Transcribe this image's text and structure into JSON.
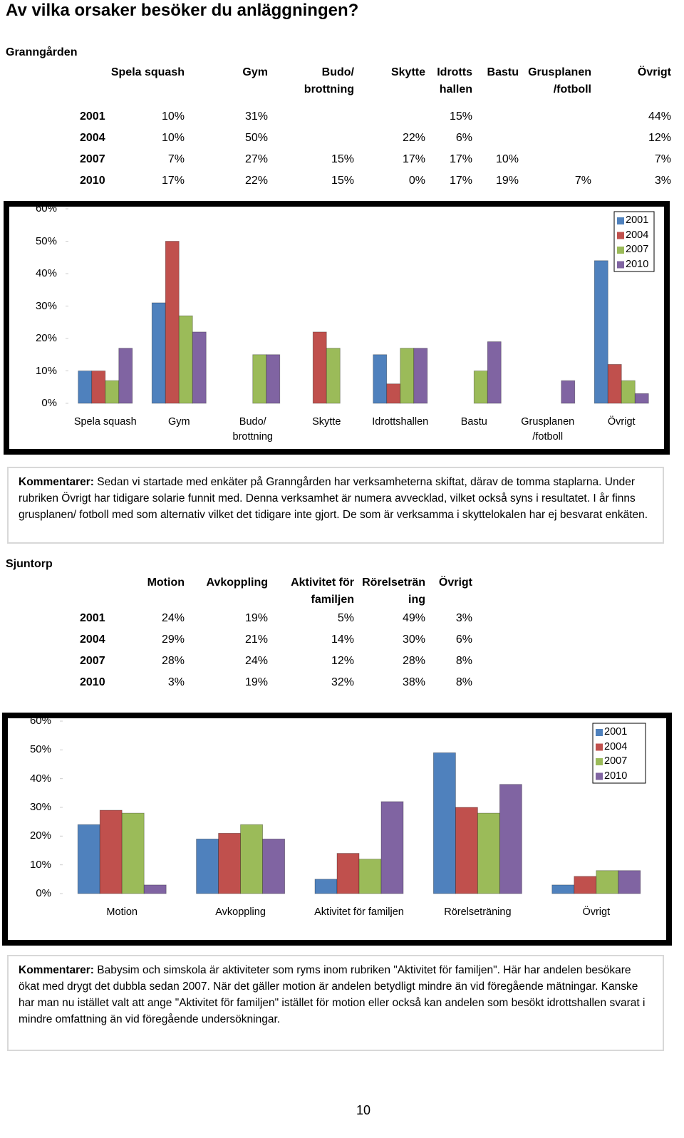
{
  "title": "Av vilka orsaker besöker du anläggningen?",
  "sections": [
    {
      "name": "Granngården",
      "table": {
        "header": [
          "Spela squash",
          "Gym",
          "Budo/\nbrottning",
          "Skytte",
          "Idrotts\nhallen",
          "Bastu",
          "Grusplanen\n/fotboll",
          "Övrigt"
        ],
        "rows": [
          [
            "2001",
            "10%",
            "31%",
            null,
            null,
            "15%",
            null,
            null,
            "44%"
          ],
          [
            "2004",
            "10%",
            "50%",
            null,
            "22%",
            "6%",
            null,
            null,
            "12%"
          ],
          [
            "2007",
            "7%",
            "27%",
            "15%",
            "17%",
            "17%",
            "10%",
            null,
            "7%"
          ],
          [
            "2010",
            "17%",
            "22%",
            "15%",
            "0%",
            "17%",
            "19%",
            "7%",
            "3%"
          ]
        ]
      },
      "comment_label": "Kommentarer:",
      "comment": "Sedan vi startade med enkäter på Granngården har verksamheterna skiftat, därav de tomma staplarna. Under rubriken Övrigt har tidigare solarie funnit med. Denna verksamhet är numera avvecklad, vilket också syns i resultatet. I år finns grusplanen/ fotboll med som alternativ vilket det tidigare inte gjort. De som är verksamma i skyttelokalen har ej besvarat enkäten."
    },
    {
      "name": "Sjuntorp",
      "table": {
        "header": [
          "Motion",
          "Avkoppling",
          "Aktivitet för\nfamiljen",
          "Rörelseträn\ning",
          "Övrigt"
        ],
        "rows": [
          [
            "2001",
            "24%",
            "19%",
            "5%",
            "49%",
            "3%"
          ],
          [
            "2004",
            "29%",
            "21%",
            "14%",
            "30%",
            "6%"
          ],
          [
            "2007",
            "28%",
            "24%",
            "12%",
            "28%",
            "8%"
          ],
          [
            "2010",
            "3%",
            "19%",
            "32%",
            "38%",
            "8%"
          ]
        ]
      },
      "comment_label": "Kommentarer:",
      "comment": "Babysim och simskola är aktiviteter som ryms inom rubriken \"Aktivitet för familjen\". Här har andelen besökare ökat med drygt det dubbla sedan 2007. När det gäller motion är andelen betydligt mindre än vid föregående mätningar. Kanske har man nu istället valt att ange \"Aktivitet för familjen\" istället för motion eller också kan andelen som besökt idrottshallen svarat i mindre omfattning än vid föregående undersökningar."
    }
  ],
  "chart_data": [
    {
      "type": "bar",
      "categories": [
        "Spela squash",
        "Gym",
        "Budo/\nbrottning",
        "Skytte",
        "Idrottshallen",
        "Bastu",
        "Grusplanen\n/fotboll",
        "Övrigt"
      ],
      "series": [
        {
          "name": "2001",
          "color": "#4f81bd",
          "values": [
            10,
            31,
            null,
            null,
            15,
            null,
            null,
            44
          ]
        },
        {
          "name": "2004",
          "color": "#c0504d",
          "values": [
            10,
            50,
            null,
            22,
            6,
            null,
            null,
            12
          ]
        },
        {
          "name": "2007",
          "color": "#9bbb59",
          "values": [
            7,
            27,
            15,
            17,
            17,
            10,
            null,
            7
          ]
        },
        {
          "name": "2010",
          "color": "#8064a2",
          "values": [
            17,
            22,
            15,
            0,
            17,
            19,
            7,
            3
          ]
        }
      ],
      "ylim": [
        0,
        60
      ],
      "yticks": [
        {
          "value": 0,
          "label": "0%"
        },
        {
          "value": 10,
          "label": "10%"
        },
        {
          "value": 20,
          "label": "20%"
        },
        {
          "value": 30,
          "label": "30%"
        },
        {
          "value": 40,
          "label": "40%"
        },
        {
          "value": 50,
          "label": "50%"
        },
        {
          "value": 60,
          "label": "60%"
        }
      ],
      "grid": false,
      "legend": "top-right"
    },
    {
      "type": "bar",
      "categories": [
        "Motion",
        "Avkoppling",
        "Aktivitet för familjen",
        "Rörelseträning",
        "Övrigt"
      ],
      "series": [
        {
          "name": "2001",
          "color": "#4f81bd",
          "values": [
            24,
            19,
            5,
            49,
            3
          ]
        },
        {
          "name": "2004",
          "color": "#c0504d",
          "values": [
            29,
            21,
            14,
            30,
            6
          ]
        },
        {
          "name": "2007",
          "color": "#9bbb59",
          "values": [
            28,
            24,
            12,
            28,
            8
          ]
        },
        {
          "name": "2010",
          "color": "#8064a2",
          "values": [
            3,
            19,
            32,
            38,
            8
          ]
        }
      ],
      "ylim": [
        0,
        60
      ],
      "yticks": [
        {
          "value": 0,
          "label": "0%"
        },
        {
          "value": 10,
          "label": "10%"
        },
        {
          "value": 20,
          "label": "20%"
        },
        {
          "value": 30,
          "label": "30%"
        },
        {
          "value": 40,
          "label": "40%"
        },
        {
          "value": 50,
          "label": "50%"
        },
        {
          "value": 60,
          "label": "60%"
        }
      ],
      "grid": false,
      "legend": "top-right"
    }
  ],
  "page_number": "10"
}
